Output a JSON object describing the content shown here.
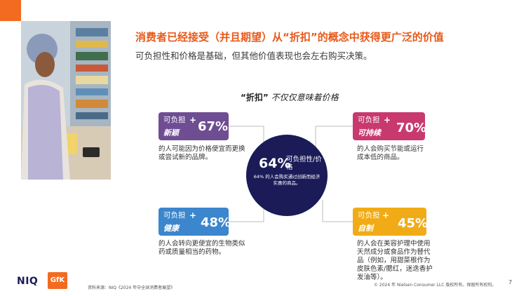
{
  "header": {
    "title": "消费者已经接受（并且期望）从“折扣”的概念中获得更广泛的价值",
    "subtitle": "可负担性和价格是基础，但其他价值表现也会左右购买决策。"
  },
  "section": {
    "quote": "“折扣”",
    "rest": "不仅仅意味着价格"
  },
  "hub": {
    "value": "64%",
    "label": "可负担性/价格",
    "note": "64% 的人会购买通过创新而经济实惠的商品。"
  },
  "cards": {
    "novel": {
      "tag": "可负担",
      "plus": "+",
      "sub": "新颖",
      "pct": "67%",
      "desc": "的人可能因为价格便宜而更换或尝试新的品牌。"
    },
    "sustainable": {
      "tag": "可负担",
      "plus": "+",
      "sub": "可持续",
      "pct": "70%",
      "desc": "的人会购买节能或运行成本低的商品。"
    },
    "health": {
      "tag": "可负担",
      "plus": "+",
      "sub": "健康",
      "pct": "48%",
      "desc": "的人会转向更便宜的生物类似药或质量相当的药物。"
    },
    "diy": {
      "tag": "可负担",
      "plus": "+",
      "sub": "自制",
      "pct": "45%",
      "desc": "的人会在美容护理中使用天然成分或食品作为替代品（例如，用甜菜根作为皮肤色素/腮红，迷迭香护发油等）。"
    }
  },
  "footer": {
    "logo_niq": "NIQ",
    "logo_gfk": "GfK",
    "source": "资料来源：NIQ《2024 年中全球消费者展望》",
    "copyright": "© 2024 年 Nielsen Consumer LLC 版权所有。保留所有权利。",
    "page": "7"
  },
  "colors": {
    "accent": "#f26b21",
    "title": "#e8591a",
    "hub": "#1a1b57",
    "novel": "#6f4d93",
    "sustainable": "#c8396e",
    "health": "#3b86cc",
    "diy": "#f1ab16"
  }
}
